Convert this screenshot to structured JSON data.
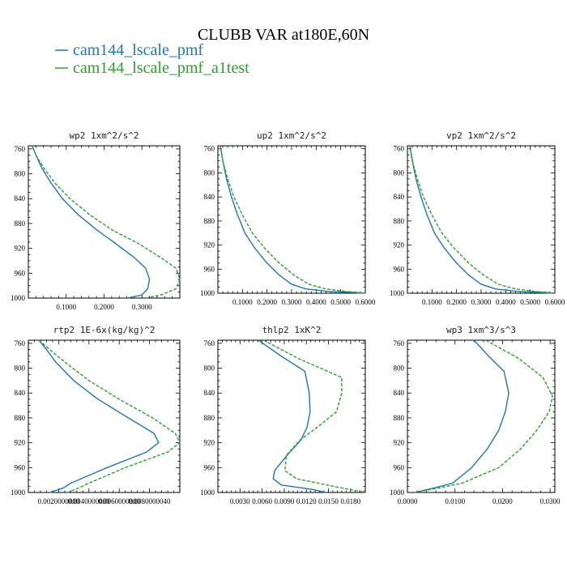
{
  "figure": {
    "title": "CLUBB VAR at180E,60N",
    "legend": [
      {
        "label": "cam144_lscale_pmf",
        "color": "#1f77b4",
        "dash": "solid"
      },
      {
        "label": "cam144_lscale_pmf_a1test",
        "color": "#2ca02c",
        "dash": "dashed"
      }
    ]
  },
  "chart_data": [
    {
      "type": "line",
      "title": "wp2  1xm^2/s^2",
      "xlim": [
        0,
        0.4
      ],
      "ylim": [
        1000,
        755
      ],
      "xticks": [
        0.1,
        0.2,
        0.3
      ],
      "xtick_labels": [
        "0.1000",
        "0.2000",
        "0.3000"
      ],
      "yticks": [
        760,
        800,
        840,
        880,
        920,
        960,
        1000
      ],
      "grid": false,
      "series": [
        {
          "name": "cam144_lscale_pmf",
          "color": "#1f77b4",
          "dash": "solid",
          "x": [
            0.01,
            0.02,
            0.035,
            0.06,
            0.09,
            0.13,
            0.18,
            0.23,
            0.28,
            0.31,
            0.32,
            0.315,
            0.3,
            0.26
          ],
          "y": [
            755,
            770,
            790,
            815,
            840,
            865,
            890,
            912,
            935,
            952,
            970,
            985,
            995,
            1000
          ]
        },
        {
          "name": "cam144_lscale_pmf_a1test",
          "color": "#2ca02c",
          "dash": "dashed",
          "x": [
            0.01,
            0.02,
            0.04,
            0.07,
            0.11,
            0.16,
            0.22,
            0.29,
            0.35,
            0.39,
            0.4,
            0.39,
            0.35,
            0.31
          ],
          "y": [
            755,
            770,
            790,
            815,
            840,
            865,
            890,
            912,
            935,
            952,
            970,
            985,
            995,
            1000
          ]
        }
      ]
    },
    {
      "type": "line",
      "title": "up2  1xm^2/s^2",
      "xlim": [
        0,
        0.6
      ],
      "ylim": [
        1000,
        755
      ],
      "xticks": [
        0.1,
        0.2,
        0.3,
        0.4,
        0.5,
        0.6
      ],
      "xtick_labels": [
        "0.1000",
        "0.2000",
        "0.3000",
        "0.4000",
        "0.5000",
        "0.6000"
      ],
      "yticks": [
        760,
        800,
        840,
        880,
        920,
        960,
        1000
      ],
      "grid": false,
      "series": [
        {
          "name": "cam144_lscale_pmf",
          "color": "#1f77b4",
          "dash": "solid",
          "x": [
            0.01,
            0.02,
            0.035,
            0.055,
            0.08,
            0.11,
            0.15,
            0.2,
            0.25,
            0.3,
            0.36,
            0.45,
            0.6
          ],
          "y": [
            755,
            780,
            810,
            840,
            870,
            900,
            925,
            950,
            970,
            985,
            993,
            997,
            1000
          ]
        },
        {
          "name": "cam144_lscale_pmf_a1test",
          "color": "#2ca02c",
          "dash": "dashed",
          "x": [
            0.01,
            0.02,
            0.04,
            0.065,
            0.1,
            0.14,
            0.19,
            0.25,
            0.31,
            0.37,
            0.44,
            0.52,
            0.6
          ],
          "y": [
            755,
            780,
            810,
            840,
            870,
            900,
            925,
            950,
            970,
            985,
            993,
            997,
            1000
          ]
        }
      ]
    },
    {
      "type": "line",
      "title": "vp2  1xm^2/s^2",
      "xlim": [
        0,
        0.6
      ],
      "ylim": [
        1000,
        755
      ],
      "xticks": [
        0.1,
        0.2,
        0.3,
        0.4,
        0.5,
        0.6
      ],
      "xtick_labels": [
        "0.1000",
        "0.2000",
        "0.3000",
        "0.4000",
        "0.5000",
        "0.6000"
      ],
      "yticks": [
        760,
        800,
        840,
        880,
        920,
        960,
        1000
      ],
      "grid": false,
      "series": [
        {
          "name": "cam144_lscale_pmf",
          "color": "#1f77b4",
          "dash": "solid",
          "x": [
            0.01,
            0.02,
            0.035,
            0.055,
            0.08,
            0.11,
            0.15,
            0.2,
            0.25,
            0.3,
            0.36,
            0.45,
            0.6
          ],
          "y": [
            755,
            780,
            810,
            840,
            870,
            900,
            925,
            950,
            970,
            985,
            993,
            997,
            1000
          ]
        },
        {
          "name": "cam144_lscale_pmf_a1test",
          "color": "#2ca02c",
          "dash": "dashed",
          "x": [
            0.01,
            0.02,
            0.04,
            0.065,
            0.1,
            0.14,
            0.19,
            0.25,
            0.31,
            0.37,
            0.44,
            0.52,
            0.6
          ],
          "y": [
            755,
            780,
            810,
            840,
            870,
            900,
            925,
            950,
            970,
            985,
            993,
            997,
            1000
          ]
        }
      ]
    },
    {
      "type": "line",
      "title": "rtp2  1E-6x(kg/kg)^2",
      "xlim": [
        0,
        5e-06
      ],
      "ylim": [
        1000,
        755
      ],
      "xticks": [
        1e-06,
        2e-06,
        3e-06,
        4e-06
      ],
      "xtick_labels": [
        "0.0020000000",
        "0.0040000000",
        "0.0060000000",
        "0.0080000040"
      ],
      "yticks": [
        760,
        800,
        840,
        880,
        920,
        960,
        1000
      ],
      "grid": false,
      "series": [
        {
          "name": "cam144_lscale_pmf",
          "color": "#1f77b4",
          "dash": "solid",
          "x": [
            3.5e-07,
            6e-07,
            9e-07,
            1.5e-06,
            2.3e-06,
            3.3e-06,
            4.15e-06,
            4.3e-06,
            3.9e-06,
            2.6e-06,
            1.4e-06,
            1.15e-06,
            7e-07
          ],
          "y": [
            755,
            770,
            790,
            820,
            850,
            880,
            905,
            920,
            935,
            960,
            985,
            993,
            1000
          ]
        },
        {
          "name": "cam144_lscale_pmf_a1test",
          "color": "#2ca02c",
          "dash": "dashed",
          "x": [
            3.5e-07,
            7e-07,
            1.2e-06,
            2e-06,
            3e-06,
            4.1e-06,
            4.85e-06,
            5e-06,
            4.6e-06,
            3.2e-06,
            2e-06,
            1.65e-06,
            1.3e-06
          ],
          "y": [
            755,
            770,
            790,
            820,
            850,
            880,
            905,
            920,
            935,
            960,
            985,
            993,
            1000
          ]
        }
      ]
    },
    {
      "type": "line",
      "title": "thlp2  1xK^2",
      "xlim": [
        0,
        0.02
      ],
      "ylim": [
        1000,
        755
      ],
      "xticks": [
        0.003,
        0.006,
        0.009,
        0.012,
        0.015,
        0.018
      ],
      "xtick_labels": [
        "0.0030",
        "0.0060",
        "0.0090",
        "0.0120",
        "0.0150",
        "0.0180"
      ],
      "yticks": [
        760,
        800,
        840,
        880,
        920,
        960,
        1000
      ],
      "grid": false,
      "series": [
        {
          "name": "cam144_lscale_pmf",
          "color": "#1f77b4",
          "dash": "solid",
          "x": [
            0.0055,
            0.0085,
            0.0118,
            0.0124,
            0.0125,
            0.0121,
            0.0113,
            0.0094,
            0.0077,
            0.0075,
            0.0086,
            0.0128,
            0.0147
          ],
          "y": [
            755,
            780,
            805,
            840,
            870,
            895,
            915,
            940,
            965,
            978,
            988,
            995,
            1000
          ]
        },
        {
          "name": "cam144_lscale_pmf_a1test",
          "color": "#2ca02c",
          "dash": "dashed",
          "x": [
            0.0062,
            0.011,
            0.0168,
            0.0168,
            0.0161,
            0.0135,
            0.0112,
            0.0093,
            0.0091,
            0.0107,
            0.0165,
            0.02
          ],
          "y": [
            755,
            785,
            815,
            840,
            870,
            895,
            915,
            940,
            965,
            978,
            992,
            1000
          ]
        }
      ]
    },
    {
      "type": "line",
      "title": "wp3  1xm^3/s^3",
      "xlim": [
        0,
        0.031
      ],
      "ylim": [
        1000,
        755
      ],
      "xticks": [
        0,
        0.01,
        0.02,
        0.03
      ],
      "xtick_labels": [
        "0.0000",
        "0.0100",
        "0.0200",
        "0.0300"
      ],
      "yticks": [
        760,
        800,
        840,
        880,
        920,
        960,
        1000
      ],
      "grid": false,
      "series": [
        {
          "name": "cam144_lscale_pmf",
          "color": "#1f77b4",
          "dash": "solid",
          "x": [
            0.014,
            0.017,
            0.0203,
            0.0213,
            0.0206,
            0.0192,
            0.0168,
            0.0135,
            0.0095,
            0.0055,
            0.0015
          ],
          "y": [
            755,
            780,
            805,
            840,
            870,
            900,
            930,
            960,
            985,
            993,
            1000
          ]
        },
        {
          "name": "cam144_lscale_pmf_a1test",
          "color": "#2ca02c",
          "dash": "dashed",
          "x": [
            0.0165,
            0.0235,
            0.0285,
            0.0305,
            0.0298,
            0.0272,
            0.0238,
            0.0192,
            0.0115,
            0.0065,
            0.0015
          ],
          "y": [
            755,
            785,
            815,
            845,
            870,
            900,
            930,
            960,
            985,
            993,
            1000
          ]
        }
      ]
    }
  ]
}
